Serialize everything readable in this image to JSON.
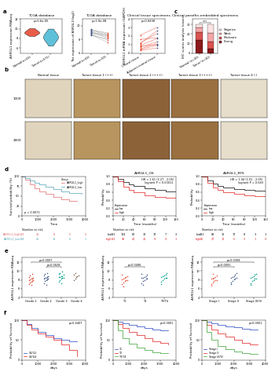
{
  "chart_data": [
    {
      "panel": "a",
      "type": "violin",
      "title": "TCGA database",
      "annotation": "p=5.6e-05",
      "y_label": "ASRGL1 expression RNAseq",
      "series": [
        {
          "name": "Normal(n=59)",
          "color": "#e64b35",
          "values": [
            8.5,
            8.8,
            9.0,
            9.1,
            9.2,
            9.3,
            9.4,
            9.6,
            9.8,
            10.1
          ]
        },
        {
          "name": "Tumor(n=571)",
          "color": "#4dbbd5",
          "values": [
            6.5,
            7.2,
            7.6,
            7.9,
            8.1,
            8.3,
            8.5,
            8.7,
            9.0,
            9.4,
            10.0
          ]
        }
      ],
      "ylim": [
        5,
        12
      ],
      "yticks": [
        6,
        8,
        10,
        12
      ]
    },
    {
      "type": "paired",
      "title": "TCGA database",
      "annotation": "p=1.9e-08",
      "y_label": "The expression of ASRGL1(log2)",
      "color": "#9e9e9e",
      "series": [
        {
          "name": "Normal(n=59)",
          "color": "#3c5488",
          "values": [
            9.2,
            9.0,
            8.8,
            9.5,
            8.6,
            9.1,
            8.9,
            9.4,
            8.7,
            9.3
          ]
        },
        {
          "name": "Tumor(n=59)",
          "color": "#e64b35",
          "values": [
            8.4,
            8.7,
            7.9,
            8.8,
            8.1,
            8.2,
            8.5,
            8.6,
            7.6,
            9.0
          ]
        }
      ],
      "ylim": [
        6,
        11
      ],
      "yticks": [
        6,
        8,
        10
      ]
    },
    {
      "type": "paired",
      "title": "Clinical tissue specimens",
      "annotation": "p=0.0438",
      "y_label": "ASRGL1 mRNA expression (GAPDH)",
      "color": "#e64b35",
      "series": [
        {
          "name": "Clinical tissue",
          "color": "#e64b35",
          "values": [
            0.5,
            0.8,
            1.2,
            0.4,
            1.6,
            0.9,
            0.3,
            1.1,
            0.7,
            2.1
          ]
        },
        {
          "name": "Adjacent normal tissue",
          "color": "#3c5488",
          "values": [
            1.1,
            1.0,
            2.3,
            0.9,
            1.8,
            1.7,
            0.6,
            2.6,
            1.3,
            3.0
          ]
        }
      ],
      "ylim": [
        0,
        4
      ],
      "yticks": [
        0,
        1,
        2,
        3,
        4
      ]
    },
    {
      "panel": "c",
      "type": "bar",
      "stacked": true,
      "title": "Clinical paraffin-embedded specimens",
      "y_label": "IHC scores analysis (cases)",
      "annotation": "***",
      "categories": [
        "Normal (n=30)",
        "Tumor (n=30)"
      ],
      "series": [
        {
          "name": "Negative",
          "color": "#fbe3e3",
          "values": [
            3,
            9
          ]
        },
        {
          "name": "Weak",
          "color": "#f4a6a6",
          "values": [
            5,
            9
          ]
        },
        {
          "name": "Moderate",
          "color": "#d9534f",
          "values": [
            8,
            7
          ]
        },
        {
          "name": "Strong",
          "color": "#8b1a1a",
          "values": [
            14,
            5
          ]
        }
      ],
      "legend": "center left",
      "ylim": [
        0,
        36
      ],
      "yticks": [
        0,
        10,
        20,
        30
      ]
    },
    {
      "panel": "d",
      "type": "km",
      "annotation": "p = 0.0071",
      "x_label": "Time",
      "y_label": "Survival probability (%)",
      "legend": "upper right",
      "legend_title": "Group",
      "series": [
        {
          "name": "ASRGL1_high",
          "color": "#e0666a",
          "x": [
            0,
            200,
            500,
            800,
            1100,
            1500,
            2000,
            2500,
            3000,
            3500
          ],
          "values": [
            100,
            92,
            80,
            70,
            62,
            55,
            48,
            42,
            38,
            38
          ]
        },
        {
          "name": "ASRGL1_low",
          "color": "#4fa3b5",
          "x": [
            0,
            200,
            500,
            800,
            1100,
            1500,
            2000,
            2500,
            3000,
            3800
          ],
          "values": [
            100,
            96,
            90,
            84,
            80,
            74,
            68,
            62,
            58,
            55
          ]
        }
      ],
      "xlim": [
        0,
        4000
      ],
      "xticks": [
        0,
        1000,
        2000,
        3000,
        4000
      ],
      "ylim": [
        0,
        100
      ],
      "yticks": [
        0,
        25,
        50,
        75,
        100
      ],
      "risk_table": {
        "title": "Number at risk",
        "rows": [
          {
            "name": "ASRGL1_high",
            "values": [
              189,
              41,
              14,
              6,
              0
            ]
          },
          {
            "name": "ASRGL1_low",
            "values": [
              188,
              46,
              19,
              6,
              1
            ]
          }
        ]
      }
    },
    {
      "type": "km",
      "title": "ASRGL1_OS",
      "annotation": "HR = 1.61 (1.27 - 2.05)\nlogrank P = 0.00011",
      "x_label": "Time (months)",
      "y_label": "Probability",
      "legend": "lower left",
      "legend_title": "Expression",
      "series": [
        {
          "name": "low",
          "color": "#000000",
          "x": [
            0,
            10,
            20,
            30,
            40,
            60,
            80,
            100,
            120
          ],
          "values": [
            1,
            0.93,
            0.85,
            0.8,
            0.75,
            0.7,
            0.66,
            0.62,
            0.6
          ]
        },
        {
          "name": "high",
          "color": "#e31a1c",
          "x": [
            0,
            10,
            20,
            30,
            40,
            60,
            80,
            100,
            120
          ],
          "values": [
            1,
            0.88,
            0.74,
            0.66,
            0.6,
            0.52,
            0.47,
            0.45,
            0.45
          ]
        }
      ],
      "xlim": [
        0,
        120
      ],
      "xticks": [
        0,
        20,
        40,
        60,
        80,
        100,
        120
      ],
      "ylim": [
        0,
        1
      ],
      "yticks": [
        {
          "value": 0,
          "label": "0.0"
        },
        0.2,
        0.4,
        0.6,
        0.8,
        {
          "value": 1,
          "label": "1.0"
        }
      ],
      "risk_table": {
        "title": "Number at risk",
        "rows": [
          {
            "name": "low",
            "values": [
              181,
              124,
              62,
              32,
              17,
              7,
              3
            ]
          },
          {
            "name": "high",
            "values": [
              183,
              96,
              40,
              21,
              9,
              4,
              1
            ]
          }
        ]
      }
    },
    {
      "type": "km",
      "title": "ASRGL1_RFS",
      "annotation": "HR = 1.44 (1.01 - 2.05)\nlogrank P = 0.043",
      "x_label": "Time (months)",
      "y_label": "Probability",
      "legend": "lower left",
      "legend_title": "Expression",
      "series": [
        {
          "name": "low",
          "color": "#000000",
          "x": [
            0,
            10,
            20,
            30,
            40,
            60,
            80,
            100,
            120
          ],
          "values": [
            1,
            0.9,
            0.82,
            0.76,
            0.72,
            0.68,
            0.65,
            0.63,
            0.62
          ]
        },
        {
          "name": "high",
          "color": "#e31a1c",
          "x": [
            0,
            10,
            20,
            30,
            40,
            60,
            80,
            100,
            120
          ],
          "values": [
            1,
            0.84,
            0.72,
            0.65,
            0.6,
            0.56,
            0.52,
            0.5,
            0.5
          ]
        }
      ],
      "xlim": [
        0,
        120
      ],
      "xticks": [
        0,
        20,
        40,
        60,
        80,
        100,
        120
      ],
      "ylim": [
        0,
        1
      ],
      "yticks": [
        {
          "value": 0,
          "label": "0.0"
        },
        0.2,
        0.4,
        0.6,
        0.8,
        {
          "value": 1,
          "label": "1.0"
        }
      ],
      "risk_table": {
        "title": "Number at risk",
        "rows": [
          {
            "name": "low",
            "values": [
              231,
              88,
              36,
              17,
              8,
              3,
              1
            ]
          },
          {
            "name": "high",
            "values": [
              80,
              27,
              12,
              5,
              3,
              1,
              0
            ]
          }
        ]
      }
    },
    {
      "panel": "e",
      "type": "strip",
      "y_label": "ASRGL1 expression RNAseq",
      "categories": [
        "Grade 1",
        "Grade 2",
        "Grade 3",
        "Grade 4"
      ],
      "colors": [
        "#e64b35",
        "#3c5488",
        "#00a087",
        "#7e6148"
      ],
      "values": [
        [
          7.1,
          7.4,
          7.6,
          7.8,
          7.9,
          8.0,
          8.1,
          8.2,
          8.3,
          8.5,
          8.7,
          9.0,
          6.8,
          9.3
        ],
        [
          7.3,
          7.7,
          7.9,
          8.1,
          8.2,
          8.3,
          8.4,
          8.5,
          8.6,
          8.8,
          9.0,
          9.3,
          6.9,
          9.6
        ],
        [
          7.6,
          8.0,
          8.2,
          8.4,
          8.5,
          8.6,
          8.7,
          8.8,
          8.9,
          9.1,
          9.3,
          9.6,
          7.2,
          9.9
        ],
        [
          7.9,
          8.3,
          8.6,
          8.8,
          9.0,
          9.2,
          9.5
        ]
      ],
      "comparisons": [
        {
          "groups": [
            "Grade 2",
            "Grade 3"
          ],
          "label": "p=0.0028"
        },
        {
          "groups": [
            "Grade 1",
            "Grade 3"
          ],
          "label": "p=0.0007"
        }
      ],
      "ylim": [
        4,
        13
      ],
      "yticks": [
        4,
        6,
        8,
        10,
        12
      ]
    },
    {
      "type": "strip",
      "y_label": "ASRGL1 expression RNAseq",
      "categories": [
        "T1",
        "T2",
        "T3/T4"
      ],
      "colors": [
        "#e64b35",
        "#3c5488",
        "#00a087"
      ],
      "values": [
        [
          7.0,
          7.4,
          7.7,
          7.9,
          8.0,
          8.1,
          8.2,
          8.4,
          8.6,
          8.8,
          9.1,
          6.6
        ],
        [
          7.3,
          7.7,
          8.0,
          8.2,
          8.3,
          8.4,
          8.5,
          8.7,
          8.9,
          9.1,
          9.4,
          6.9
        ],
        [
          7.5,
          7.9,
          8.2,
          8.4,
          8.5,
          8.6,
          8.8,
          9.0,
          9.2,
          9.5,
          7.1
        ]
      ],
      "comparisons": [
        {
          "groups": [
            "T1",
            "T2"
          ],
          "label": "p=0.0496"
        }
      ],
      "ylim": [
        4,
        13
      ],
      "yticks": [
        4,
        6,
        8,
        10,
        12
      ]
    },
    {
      "type": "strip",
      "y_label": "ASRGL1 expression RNAseq",
      "categories": [
        "Stage I",
        "Stage II",
        "Stage III/IV"
      ],
      "colors": [
        "#e64b35",
        "#3c5488",
        "#00a087"
      ],
      "values": [
        [
          7.0,
          7.4,
          7.7,
          7.9,
          8.0,
          8.2,
          8.3,
          8.5,
          8.7,
          9.0,
          6.7,
          9.3
        ],
        [
          7.4,
          7.8,
          8.1,
          8.3,
          8.4,
          8.5,
          8.7,
          8.9,
          9.2,
          9.5,
          7.0
        ],
        [
          7.3,
          7.7,
          8.0,
          8.2,
          8.3,
          8.5,
          8.6,
          8.8,
          9.1,
          9.4,
          6.9
        ]
      ],
      "comparisons": [
        {
          "groups": [
            "Stage I",
            "Stage II"
          ],
          "label": "p=0.0091"
        },
        {
          "groups": [
            "Stage I",
            "Stage III/IV"
          ],
          "label": "p=0.0358"
        }
      ],
      "ylim": [
        4,
        13
      ],
      "yticks": [
        4,
        6,
        8,
        10,
        12
      ]
    },
    {
      "panel": "f",
      "type": "km",
      "annotation": "p=0.4407",
      "x_label": "days",
      "y_label": "Probability of Survival",
      "legend": "lower left",
      "series": [
        {
          "name": "G1/G2",
          "color": "#1f3fbf",
          "x": [
            0,
            300,
            600,
            1000,
            1500,
            2000,
            2500,
            3000,
            3500
          ],
          "values": [
            100,
            90,
            80,
            70,
            62,
            55,
            50,
            48,
            48
          ]
        },
        {
          "name": "G3/G4",
          "color": "#e31a1c",
          "x": [
            0,
            300,
            600,
            1000,
            1500,
            2000,
            2500,
            3000,
            3500
          ],
          "values": [
            100,
            88,
            76,
            66,
            58,
            50,
            40,
            25,
            10
          ]
        }
      ],
      "xlim": [
        0,
        4000
      ],
      "xticks": [
        0,
        1000,
        2000,
        3000,
        4000
      ],
      "ylim": [
        0,
        100
      ],
      "yticks": [
        0,
        50,
        100
      ]
    },
    {
      "type": "km",
      "annotation": "p<0.0001",
      "x_label": "days",
      "y_label": "Probability of Survival",
      "legend": "lower left",
      "series": [
        {
          "name": "T1",
          "color": "#1f3fbf",
          "x": [
            0,
            300,
            600,
            1000,
            1500,
            2000,
            2500,
            3000,
            3500
          ],
          "values": [
            100,
            96,
            92,
            88,
            84,
            80,
            76,
            74,
            74
          ]
        },
        {
          "name": "T2",
          "color": "#e31a1c",
          "x": [
            0,
            300,
            600,
            1000,
            1500,
            2000,
            2500,
            3000,
            3500
          ],
          "values": [
            100,
            90,
            80,
            70,
            62,
            54,
            48,
            44,
            40
          ]
        },
        {
          "name": "T3/T4",
          "color": "#33a02c",
          "x": [
            0,
            300,
            600,
            1000,
            1500,
            2000,
            2500,
            3000,
            3500
          ],
          "values": [
            100,
            75,
            55,
            42,
            32,
            25,
            20,
            18,
            18
          ]
        }
      ],
      "xlim": [
        0,
        4000
      ],
      "xticks": [
        0,
        1000,
        2000,
        3000,
        4000
      ],
      "ylim": [
        0,
        100
      ],
      "yticks": [
        0,
        50,
        100
      ]
    },
    {
      "type": "km",
      "annotation": "p<0.0001",
      "x_label": "days",
      "y_label": "Probability of Survival",
      "legend": "lower left",
      "series": [
        {
          "name": "Stage I",
          "color": "#1f3fbf",
          "x": [
            0,
            300,
            600,
            1000,
            1500,
            2000,
            2500,
            3000,
            3500
          ],
          "values": [
            100,
            96,
            92,
            88,
            85,
            82,
            78,
            76,
            76
          ]
        },
        {
          "name": "Stage II",
          "color": "#e31a1c",
          "x": [
            0,
            300,
            600,
            1000,
            1500,
            2000,
            2500,
            3000,
            3500
          ],
          "values": [
            100,
            88,
            76,
            66,
            58,
            50,
            44,
            40,
            40
          ]
        },
        {
          "name": "Stage III/IV",
          "color": "#33a02c",
          "x": [
            0,
            300,
            600,
            1000,
            1500,
            2000,
            2500,
            3000,
            3500
          ],
          "values": [
            100,
            70,
            50,
            36,
            28,
            22,
            18,
            16,
            16
          ]
        }
      ],
      "xlim": [
        0,
        4000
      ],
      "xticks": [
        0,
        1000,
        2000,
        3000,
        4000
      ],
      "ylim": [
        0,
        100
      ],
      "yticks": [
        0,
        50,
        100
      ]
    }
  ],
  "panel_b": {
    "panel": "b",
    "columns": [
      "Normal tissue",
      "Tumor tissue 1 (++)",
      "Tumor tissue 2 (+++)",
      "Tumor tissue 3 (+++)",
      "Tumor tissue 4 (-)"
    ],
    "rows": [
      "100X",
      "200X"
    ]
  }
}
